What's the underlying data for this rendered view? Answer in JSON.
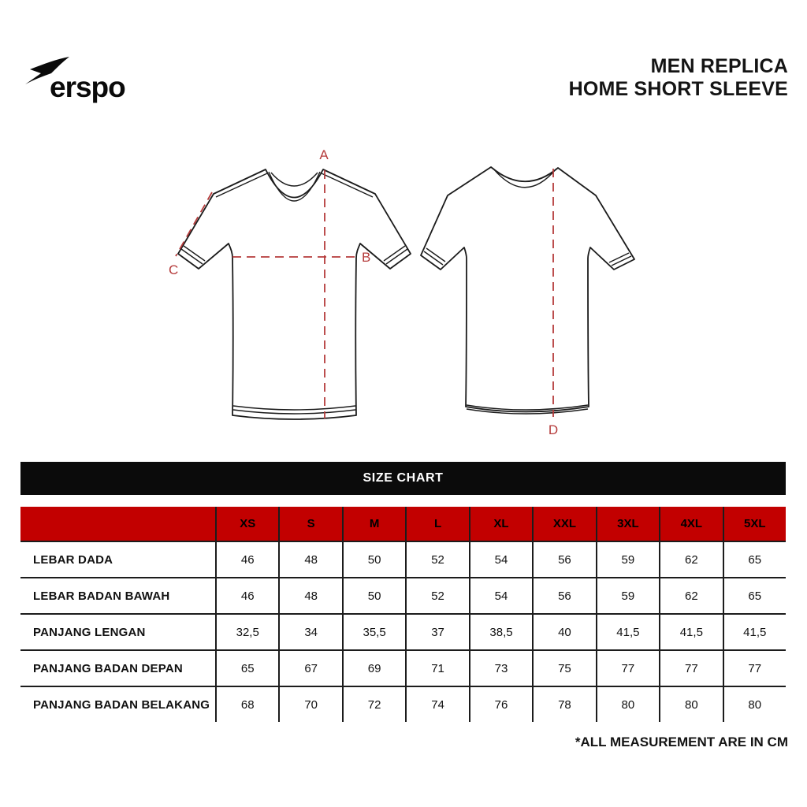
{
  "brand": {
    "name": "erspo"
  },
  "header": {
    "title_line1": "MEN REPLICA",
    "title_line2": "HOME SHORT SLEEVE"
  },
  "diagram": {
    "line_color": "#B53B3B",
    "labels": {
      "a": "A",
      "b": "B",
      "c": "C",
      "d": "D"
    }
  },
  "size_chart": {
    "title": "SIZE CHART",
    "bar_bg": "#0B0B0B",
    "header_bg": "#C20000",
    "columns": [
      "XS",
      "S",
      "M",
      "L",
      "XL",
      "XXL",
      "3XL",
      "4XL",
      "5XL"
    ],
    "rows": [
      {
        "label": "LEBAR DADA",
        "values": [
          "46",
          "48",
          "50",
          "52",
          "54",
          "56",
          "59",
          "62",
          "65"
        ]
      },
      {
        "label": "LEBAR BADAN BAWAH",
        "values": [
          "46",
          "48",
          "50",
          "52",
          "54",
          "56",
          "59",
          "62",
          "65"
        ]
      },
      {
        "label": "PANJANG LENGAN",
        "values": [
          "32,5",
          "34",
          "35,5",
          "37",
          "38,5",
          "40",
          "41,5",
          "41,5",
          "41,5"
        ]
      },
      {
        "label": "PANJANG BADAN DEPAN",
        "values": [
          "65",
          "67",
          "69",
          "71",
          "73",
          "75",
          "77",
          "77",
          "77"
        ]
      },
      {
        "label": "PANJANG BADAN BELAKANG",
        "values": [
          "68",
          "70",
          "72",
          "74",
          "76",
          "78",
          "80",
          "80",
          "80"
        ]
      }
    ]
  },
  "footnote": "*ALL MEASUREMENT ARE IN CM"
}
